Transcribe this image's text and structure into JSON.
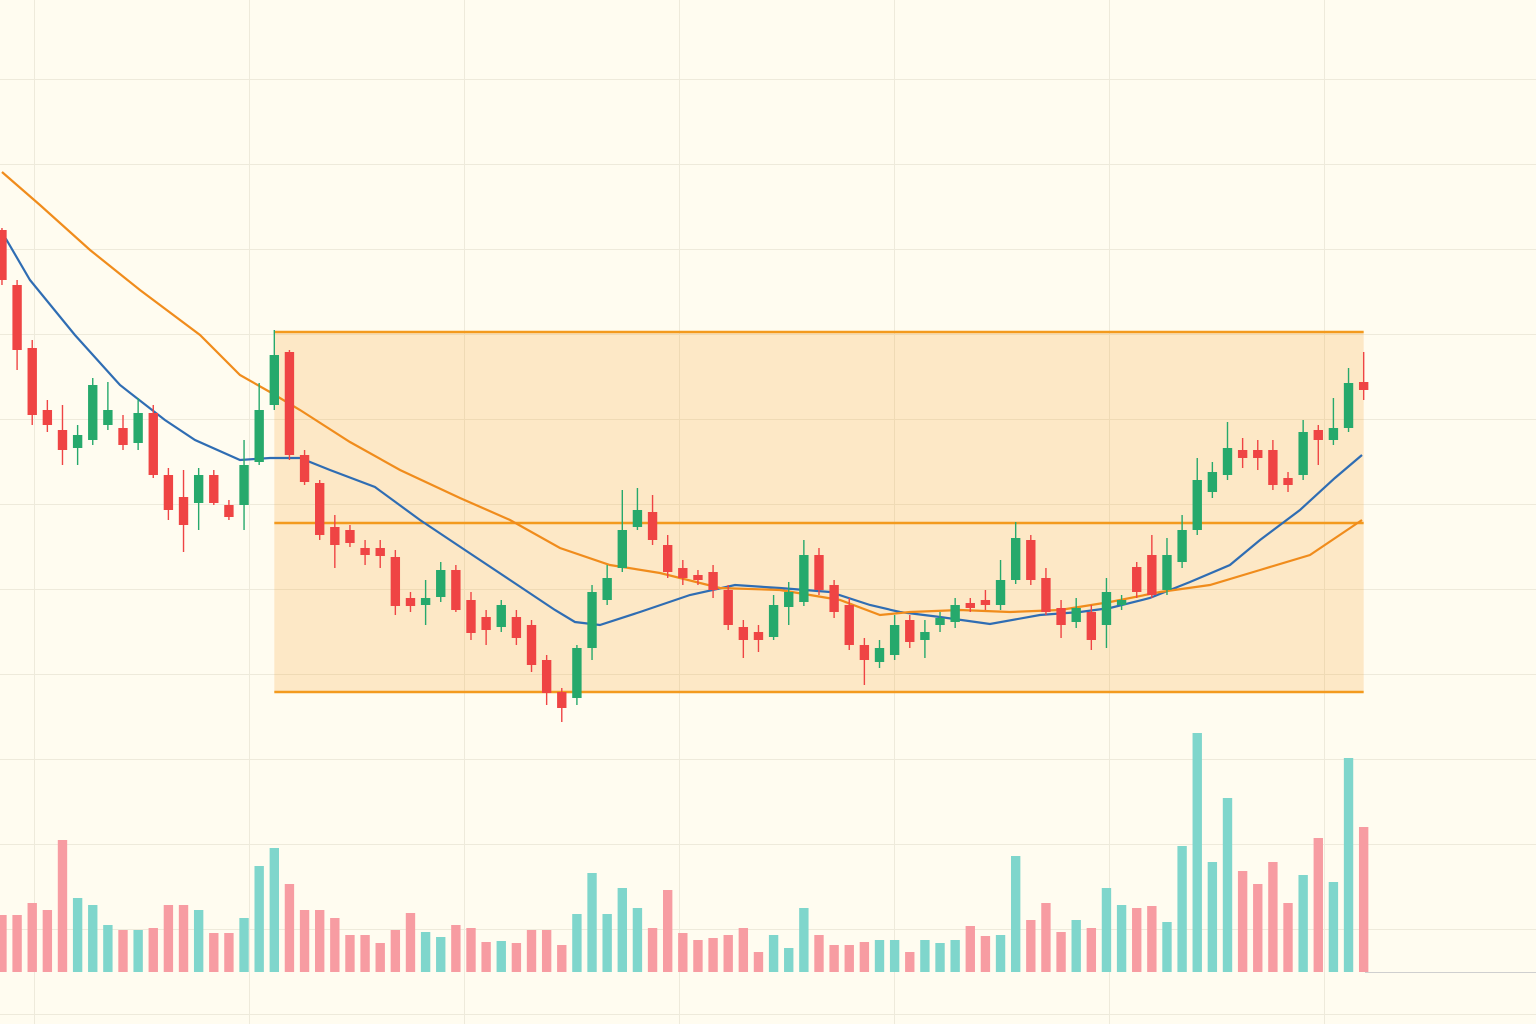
{
  "chart_data": {
    "type": "candlestick",
    "xlim": [
      -0.13,
      101.39
    ],
    "ylim": [
      0,
      100
    ],
    "open": [
      77.0,
      71.5,
      65.2,
      59.0,
      57.0,
      55.2,
      56.0,
      57.5,
      57.2,
      55.7,
      58.7,
      52.5,
      50.3,
      49.7,
      52.5,
      49.5,
      49.5,
      53.8,
      59.5,
      64.8,
      54.5,
      51.7,
      47.3,
      47.0,
      45.2,
      45.2,
      44.3,
      40.2,
      39.5,
      40.3,
      43.0,
      40.0,
      38.3,
      37.3,
      38.3,
      37.5,
      34.0,
      30.8,
      30.2,
      35.2,
      40.0,
      43.2,
      47.3,
      48.8,
      45.5,
      43.2,
      42.5,
      42.8,
      41.0,
      37.3,
      36.8,
      36.3,
      39.3,
      39.8,
      44.5,
      41.5,
      39.5,
      35.5,
      33.8,
      34.5,
      38.0,
      36.0,
      37.5,
      37.8,
      39.7,
      40.0,
      39.5,
      42.0,
      46.0,
      42.2,
      39.2,
      37.8,
      38.8,
      37.5,
      39.5,
      43.3,
      44.5,
      41.0,
      43.8,
      47.0,
      50.8,
      52.5,
      55.0,
      55.0,
      55.0,
      52.2,
      52.5,
      57.0,
      56.0,
      57.2,
      61.8
    ],
    "high": [
      77.2,
      72.0,
      66.0,
      60.0,
      59.5,
      57.5,
      62.2,
      61.8,
      58.5,
      60.2,
      59.5,
      53.2,
      53.0,
      53.2,
      53.0,
      50.0,
      56.0,
      61.7,
      67.0,
      65.0,
      55.0,
      52.0,
      48.5,
      47.5,
      46.0,
      46.0,
      45.0,
      40.8,
      42.0,
      43.8,
      43.5,
      40.8,
      39.0,
      40.0,
      39.0,
      38.0,
      34.5,
      31.2,
      35.5,
      41.5,
      43.5,
      51.0,
      51.2,
      50.5,
      46.5,
      44.0,
      43.0,
      43.5,
      41.5,
      38.0,
      37.5,
      40.5,
      41.8,
      46.0,
      45.2,
      42.0,
      40.2,
      36.2,
      36.0,
      38.5,
      38.5,
      38.0,
      38.8,
      40.2,
      40.2,
      41.0,
      44.0,
      47.8,
      46.5,
      43.2,
      40.0,
      40.2,
      39.5,
      42.2,
      40.5,
      43.8,
      46.5,
      46.2,
      48.5,
      54.2,
      53.8,
      57.8,
      56.2,
      56.0,
      56.0,
      52.8,
      58.0,
      57.5,
      60.2,
      63.2,
      64.8
    ],
    "low": [
      71.5,
      63.0,
      57.5,
      56.8,
      53.5,
      53.5,
      55.5,
      57.0,
      55.0,
      55.0,
      52.2,
      48.0,
      44.8,
      47.0,
      49.5,
      48.0,
      47.0,
      53.5,
      59.0,
      54.0,
      51.5,
      46.0,
      43.2,
      45.3,
      43.5,
      43.2,
      38.5,
      38.8,
      37.5,
      39.8,
      38.8,
      36.0,
      35.5,
      36.8,
      35.5,
      32.8,
      29.5,
      27.8,
      29.5,
      34.0,
      39.5,
      42.8,
      47.0,
      45.5,
      42.2,
      41.5,
      41.5,
      40.2,
      37.0,
      34.2,
      34.8,
      36.0,
      37.5,
      39.4,
      40.5,
      38.2,
      35.0,
      31.5,
      33.2,
      34.0,
      35.2,
      34.2,
      36.8,
      37.2,
      38.8,
      39.0,
      39.0,
      41.6,
      41.5,
      38.5,
      36.2,
      37.2,
      35.0,
      35.2,
      39.0,
      40.2,
      40.2,
      40.5,
      43.2,
      46.5,
      50.2,
      52.0,
      53.2,
      53.0,
      51.0,
      50.8,
      52.0,
      53.5,
      55.5,
      56.8,
      60.0
    ],
    "close": [
      72.0,
      65.0,
      58.5,
      57.5,
      55.0,
      56.5,
      61.5,
      59.0,
      55.5,
      58.7,
      52.5,
      49.0,
      47.5,
      52.5,
      49.7,
      48.3,
      53.5,
      59.0,
      64.5,
      54.5,
      51.8,
      46.5,
      45.5,
      45.7,
      44.5,
      44.4,
      39.4,
      39.4,
      40.2,
      43.0,
      39.0,
      36.7,
      37.0,
      39.5,
      36.2,
      33.5,
      30.7,
      29.2,
      35.2,
      40.8,
      42.2,
      47.0,
      49.0,
      46.0,
      42.8,
      42.2,
      42.0,
      41.0,
      37.5,
      36.0,
      36.0,
      39.5,
      40.8,
      44.5,
      41.0,
      38.8,
      35.5,
      34.0,
      35.2,
      37.5,
      35.8,
      36.8,
      38.2,
      39.5,
      39.2,
      39.5,
      42.0,
      46.2,
      42.0,
      38.8,
      37.5,
      39.2,
      36.0,
      40.8,
      40.0,
      40.8,
      40.5,
      44.5,
      47.0,
      52.0,
      52.8,
      55.2,
      54.2,
      54.2,
      51.5,
      51.5,
      56.8,
      56.0,
      57.2,
      61.7,
      61.0
    ],
    "up_color": "#26a96c",
    "down_color": "#ef4444",
    "volume": {
      "values": [
        57,
        57,
        69,
        62,
        132,
        74,
        67,
        47,
        42,
        42,
        44,
        67,
        67,
        62,
        39,
        39,
        54,
        106,
        124,
        88,
        62,
        62,
        54,
        37,
        37,
        29,
        42,
        59,
        40,
        35,
        47,
        44,
        30,
        31,
        29,
        42,
        42,
        27,
        58,
        99,
        58,
        84,
        64,
        44,
        82,
        39,
        32,
        34,
        37,
        44,
        20,
        37,
        24,
        64,
        37,
        27,
        27,
        30,
        32,
        32,
        20,
        32,
        29,
        32,
        46,
        36,
        37,
        116,
        52,
        69,
        40,
        52,
        44,
        84,
        67,
        64,
        66,
        50,
        126,
        239,
        110,
        174,
        101,
        88,
        110,
        69,
        97,
        134,
        90,
        214,
        145
      ],
      "vlim": [
        0,
        260
      ],
      "up_color": "#7fd6cc",
      "down_color": "#f79ca2"
    },
    "series": [
      {
        "color": "#2f6db3",
        "x": [
          0,
          1.85,
          4.82,
          7.8,
          10.77,
          12.76,
          15.73,
          17.71,
          19.7,
          21.68,
          24.65,
          27.63,
          30.6,
          33.58,
          36.55,
          37.87,
          39.52,
          42.17,
          45.47,
          48.45,
          51.42,
          54.73,
          57.37,
          59.35,
          62.0,
          65.3,
          68.6,
          71.25,
          73.23,
          75.87,
          78.52,
          81.16,
          83.15,
          85.79,
          88.1,
          89.89
        ],
        "values": [
          76.8,
          72.0,
          66.5,
          61.5,
          58.0,
          56.0,
          54.0,
          54.2,
          54.2,
          53.0,
          51.3,
          48.0,
          45.0,
          42.0,
          39.0,
          37.8,
          37.5,
          38.8,
          40.5,
          41.5,
          41.2,
          40.8,
          39.5,
          38.8,
          38.3,
          37.6,
          38.5,
          38.8,
          39.2,
          40.2,
          41.8,
          43.5,
          46.0,
          49.0,
          52.2,
          54.5
        ]
      },
      {
        "color": "#f08c1c",
        "x": [
          0,
          2.51,
          5.82,
          9.12,
          13.09,
          15.73,
          17.71,
          19.7,
          23.0,
          26.31,
          30.27,
          33.58,
          36.88,
          40.18,
          43.49,
          47.46,
          51.42,
          55.39,
          58.03,
          60.01,
          63.32,
          66.62,
          69.93,
          73.23,
          76.54,
          79.84,
          83.15,
          86.45,
          89.89
        ],
        "values": [
          82.8,
          79.5,
          75.0,
          71.0,
          66.5,
          62.5,
          60.8,
          59.0,
          55.8,
          53.0,
          50.2,
          48.0,
          45.2,
          43.5,
          42.7,
          41.2,
          41.0,
          40.0,
          38.5,
          38.8,
          39.0,
          38.8,
          39.0,
          39.8,
          40.8,
          41.5,
          43.0,
          44.5,
          48.0
        ]
      }
    ],
    "range": {
      "levels": [
        66.8,
        47.7,
        30.8
      ],
      "x": [
        18,
        90
      ],
      "color": "#f39a1e"
    }
  }
}
